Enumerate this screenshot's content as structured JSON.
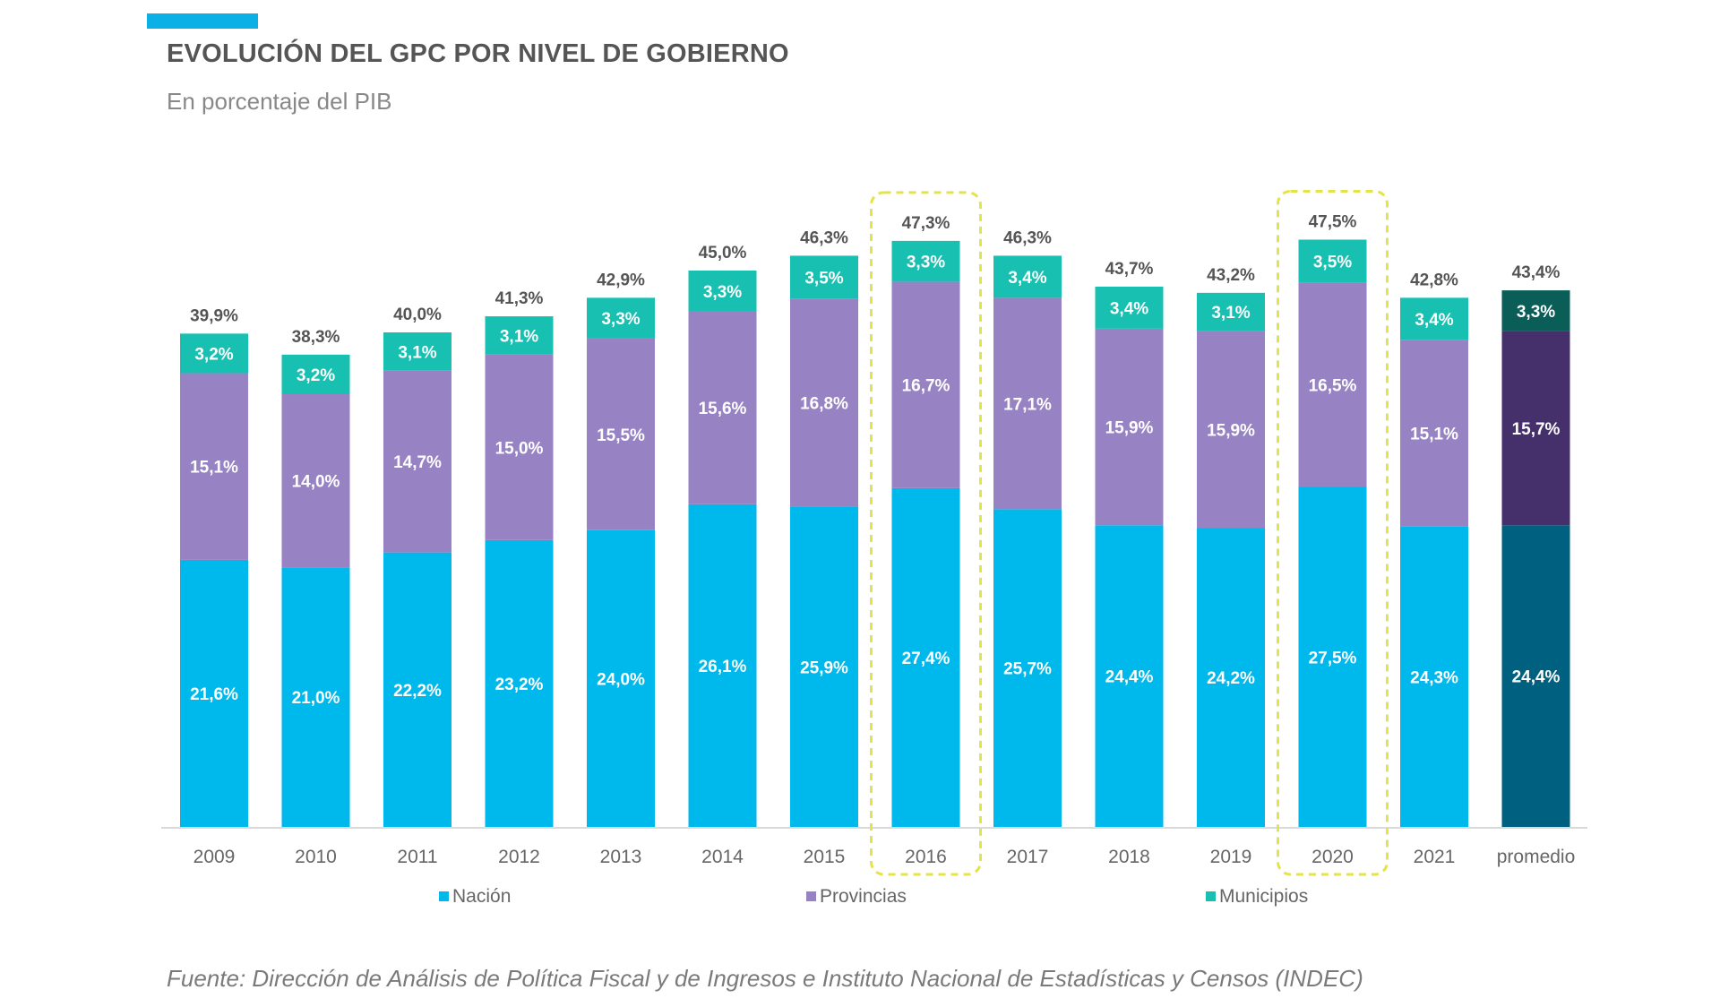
{
  "header": {
    "title": "EVOLUCIÓN DEL GPC POR NIVEL DE GOBIERNO",
    "subtitle": "En porcentaje del PIB"
  },
  "footer": {
    "source": "Fuente: Dirección de Análisis de Política Fiscal y de Ingresos e Instituto Nacional de Estadísticas y Censos (INDEC)"
  },
  "chart_data": {
    "type": "bar",
    "stacked": true,
    "title": "EVOLUCIÓN DEL GPC POR NIVEL DE GOBIERNO",
    "subtitle": "En porcentaje del PIB",
    "xlabel": "",
    "ylabel": "",
    "ylim": [
      0,
      50
    ],
    "grid": false,
    "legend_position": "bottom",
    "categories": [
      "2009",
      "2010",
      "2011",
      "2012",
      "2013",
      "2014",
      "2015",
      "2016",
      "2017",
      "2018",
      "2019",
      "2020",
      "2021",
      "promedio"
    ],
    "series": [
      {
        "name": "Nación",
        "color": "#00b9ec",
        "avg_color": "#00607f",
        "values": [
          21.6,
          21.0,
          22.2,
          23.2,
          24.0,
          26.1,
          25.9,
          27.4,
          25.7,
          24.4,
          24.2,
          27.5,
          24.3,
          24.4
        ],
        "labels": [
          "21,6%",
          "21,0%",
          "22,2%",
          "23,2%",
          "24,0%",
          "26,1%",
          "25,9%",
          "27,4%",
          "25,7%",
          "24,4%",
          "24,2%",
          "27,5%",
          "24,3%",
          "24,4%"
        ]
      },
      {
        "name": "Provincias",
        "color": "#9783c4",
        "avg_color": "#45306b",
        "values": [
          15.1,
          14.0,
          14.7,
          15.0,
          15.5,
          15.6,
          16.8,
          16.7,
          17.1,
          15.9,
          15.9,
          16.5,
          15.1,
          15.7
        ],
        "labels": [
          "15,1%",
          "14,0%",
          "14,7%",
          "15,0%",
          "15,5%",
          "15,6%",
          "16,8%",
          "16,7%",
          "17,1%",
          "15,9%",
          "15,9%",
          "16,5%",
          "15,1%",
          "15,7%"
        ]
      },
      {
        "name": "Municipios",
        "color": "#17c0b1",
        "avg_color": "#0a5e57",
        "values": [
          3.2,
          3.2,
          3.1,
          3.1,
          3.3,
          3.3,
          3.5,
          3.3,
          3.4,
          3.4,
          3.1,
          3.5,
          3.4,
          3.3
        ],
        "labels": [
          "3,2%",
          "3,2%",
          "3,1%",
          "3,1%",
          "3,3%",
          "3,3%",
          "3,5%",
          "3,3%",
          "3,4%",
          "3,4%",
          "3,1%",
          "3,5%",
          "3,4%",
          "3,3%"
        ]
      }
    ],
    "totals": [
      39.9,
      38.3,
      40.0,
      41.3,
      42.9,
      45.0,
      46.3,
      47.3,
      46.3,
      43.7,
      43.2,
      47.5,
      42.8,
      43.4
    ],
    "total_labels": [
      "39,9%",
      "38,3%",
      "40,0%",
      "41,3%",
      "42,9%",
      "45,0%",
      "46,3%",
      "47,3%",
      "46,3%",
      "43,7%",
      "43,2%",
      "47,5%",
      "42,8%",
      "43,4%"
    ],
    "highlighted_categories": [
      "2016",
      "2020"
    ],
    "highlight_color": "#e5e34a",
    "colors": {
      "label_text": "#ffffff",
      "total_text": "#555555",
      "tick_text": "#666666",
      "legend_text": "#666666",
      "axis_line": "#d9d9d9"
    }
  }
}
